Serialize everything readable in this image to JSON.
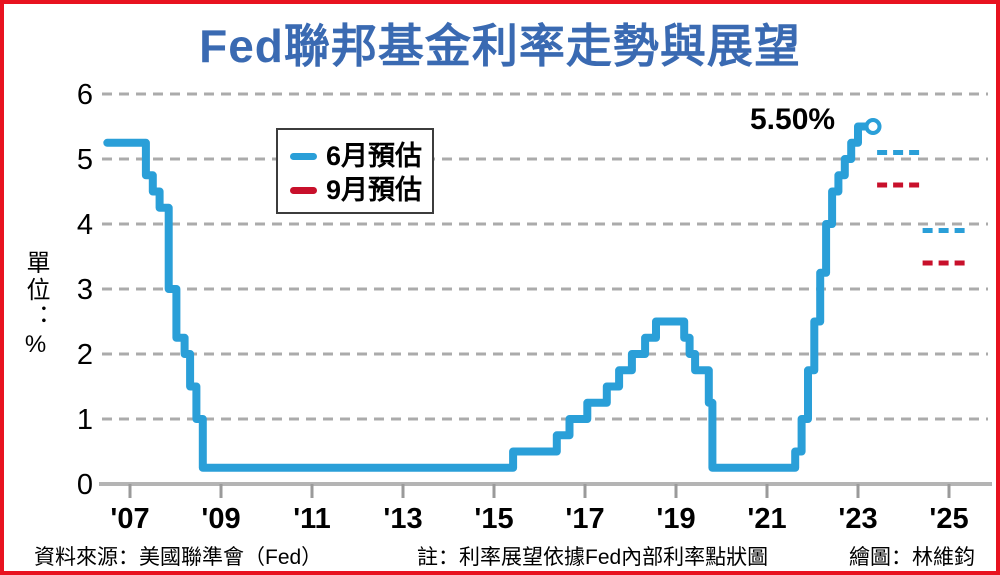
{
  "title": "Fed聯邦基金利率走勢與展望",
  "legend": {
    "items": [
      {
        "key": "june",
        "label": "6月預估"
      },
      {
        "key": "september",
        "label": "9月預估"
      }
    ]
  },
  "footer": {
    "source": "資料來源：美國聯準會（Fed）",
    "note": "註：利率展望依據Fed內部利率點狀圖",
    "credit": "繪圖：林維鈞"
  },
  "chart_data": {
    "type": "line",
    "title": "Fed聯邦基金利率走勢與展望",
    "ylabel": "單位：%",
    "xlabel": "",
    "ylim": [
      0,
      6
    ],
    "grid": "horizontal-dashed",
    "legend_position": "upper-left",
    "y_ticks": [
      "0",
      "1",
      "2",
      "3",
      "4",
      "5",
      "6"
    ],
    "x_ticks": [
      2007,
      2009,
      2011,
      2013,
      2015,
      2017,
      2019,
      2021,
      2023,
      2025
    ],
    "x_tick_labels": [
      "'07",
      "'09",
      "'11",
      "'13",
      "'15",
      "'17",
      "'19",
      "'21",
      "'23",
      "'25"
    ],
    "annotation": {
      "text": "5.50%",
      "value": 5.5
    },
    "rate_steps": [
      [
        2006.5,
        5.25
      ],
      [
        2007.35,
        4.75
      ],
      [
        2007.5,
        4.5
      ],
      [
        2007.65,
        4.25
      ],
      [
        2007.85,
        3.0
      ],
      [
        2008.02,
        2.25
      ],
      [
        2008.2,
        2.0
      ],
      [
        2008.32,
        1.5
      ],
      [
        2008.46,
        1.0
      ],
      [
        2008.6,
        0.25
      ],
      [
        2015.42,
        0.5
      ],
      [
        2016.38,
        0.75
      ],
      [
        2016.66,
        1.0
      ],
      [
        2017.05,
        1.25
      ],
      [
        2017.48,
        1.5
      ],
      [
        2017.75,
        1.75
      ],
      [
        2018.03,
        2.0
      ],
      [
        2018.32,
        2.25
      ],
      [
        2018.56,
        2.5
      ],
      [
        2019.18,
        2.25
      ],
      [
        2019.3,
        2.0
      ],
      [
        2019.42,
        1.75
      ],
      [
        2019.72,
        1.25
      ],
      [
        2019.8,
        0.25
      ],
      [
        2021.62,
        0.5
      ],
      [
        2021.76,
        1.0
      ],
      [
        2021.9,
        1.75
      ],
      [
        2022.04,
        2.5
      ],
      [
        2022.17,
        3.25
      ],
      [
        2022.3,
        4.0
      ],
      [
        2022.43,
        4.5
      ],
      [
        2022.57,
        4.75
      ],
      [
        2022.71,
        5.0
      ],
      [
        2022.85,
        5.25
      ],
      [
        2023.0,
        5.5
      ]
    ],
    "end_marker": {
      "year": 2023.33,
      "value": 5.5,
      "style": "open-circle"
    },
    "projections": {
      "june": {
        "label": "6月預估",
        "color_key": "line_blue",
        "segments": [
          {
            "from": 2023.42,
            "to": 2024.45,
            "value": 5.1
          },
          {
            "from": 2024.42,
            "to": 2025.45,
            "value": 3.9
          }
        ]
      },
      "september": {
        "label": "9月預估",
        "color_key": "line_red",
        "segments": [
          {
            "from": 2023.42,
            "to": 2024.45,
            "value": 4.6
          },
          {
            "from": 2024.42,
            "to": 2025.45,
            "value": 3.4
          }
        ]
      }
    },
    "colors": {
      "line_blue": "#2a9fd8",
      "line_red": "#c8102b",
      "grid": "#ababab",
      "axis": "#b4b4b4",
      "tick": "#9a9a9a",
      "title_blue": "#3a6ab2",
      "border_red": "#e8121f",
      "text": "#000000"
    }
  }
}
